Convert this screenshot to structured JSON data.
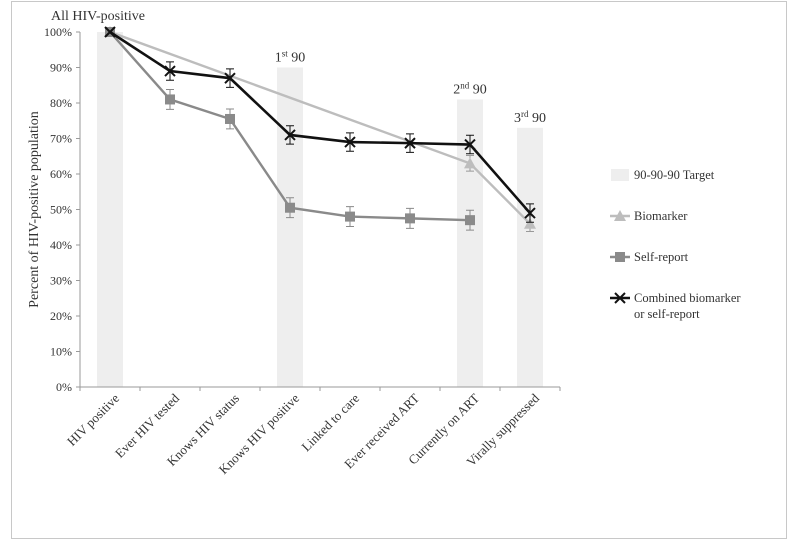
{
  "chart_data": {
    "type": "line",
    "ylabel": "Percent of HIV-positive population",
    "ylim": [
      0,
      100
    ],
    "yticks": [
      "0%",
      "10%",
      "20%",
      "30%",
      "40%",
      "50%",
      "60%",
      "70%",
      "80%",
      "90%",
      "100%"
    ],
    "categories": [
      "HIV positive",
      "Ever HIV tested",
      "Knows HIV status",
      "Knows HIV positive",
      "Linked to care",
      "Ever received ART",
      "Currently on ART",
      "Virally suppressed"
    ],
    "target_bars": [
      {
        "category_index": 0,
        "value": 100,
        "label": "All HIV-positive"
      },
      {
        "category_index": 3,
        "value": 90,
        "label": "1st 90"
      },
      {
        "category_index": 6,
        "value": 81,
        "label": "2nd 90"
      },
      {
        "category_index": 7,
        "value": 73,
        "label": "3rd 90"
      }
    ],
    "series": [
      {
        "name": "Biomarker",
        "marker": "triangle",
        "color": "#bdbdbd",
        "points": [
          [
            0,
            100
          ],
          [
            6,
            63
          ],
          [
            7,
            46
          ]
        ],
        "error": 2.2
      },
      {
        "name": "Self-report",
        "marker": "square",
        "color": "#8a8a8a",
        "points": [
          [
            0,
            100
          ],
          [
            1,
            81
          ],
          [
            2,
            75.5
          ],
          [
            3,
            50.5
          ],
          [
            4,
            48
          ],
          [
            5,
            47.5
          ],
          [
            6,
            47
          ]
        ],
        "error": 2.8
      },
      {
        "name": "Combined biomarker or self-report",
        "marker": "x",
        "color": "#111111",
        "points": [
          [
            0,
            100
          ],
          [
            1,
            89
          ],
          [
            2,
            87
          ],
          [
            3,
            71
          ],
          [
            4,
            69
          ],
          [
            5,
            68.7
          ],
          [
            6,
            68.3
          ],
          [
            7,
            49
          ]
        ],
        "error": 2.6
      }
    ],
    "legend": {
      "position": "right",
      "items": [
        {
          "label": "90-90-90 Target",
          "marker": "bar",
          "color": "#eeeeee"
        },
        {
          "label": "Biomarker",
          "marker": "triangle",
          "color": "#bdbdbd"
        },
        {
          "label": "Self-report",
          "marker": "square",
          "color": "#8a8a8a"
        },
        {
          "label": "Combined biomarker",
          "label2": "or self-report",
          "marker": "x",
          "color": "#111111"
        }
      ]
    },
    "grid": false
  }
}
